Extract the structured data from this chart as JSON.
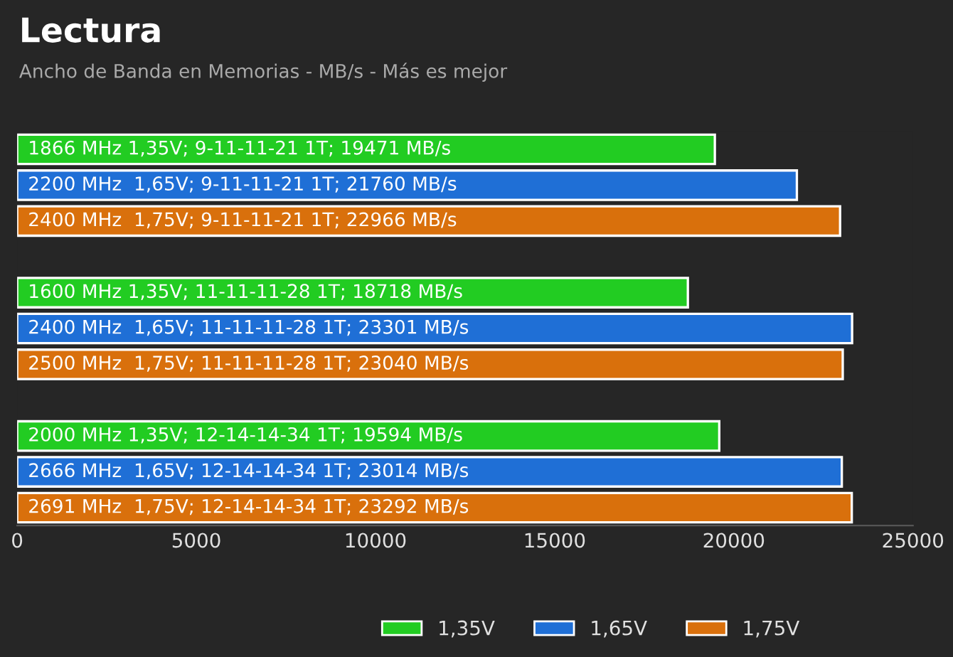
{
  "chart_data": {
    "type": "bar",
    "orientation": "horizontal",
    "title": "Lectura",
    "subtitle": "Ancho de Banda en Memorias - MB/s - Más es mejor",
    "categories": [
      "1866 MHz 1,35V; 9-11-11-21 1T; 19471 MB/s",
      "2200 MHz  1,65V; 9-11-11-21 1T; 21760 MB/s",
      "2400 MHz  1,75V; 9-11-11-21 1T; 22966 MB/s",
      null,
      "1600 MHz 1,35V; 11-11-11-28 1T; 18718 MB/s",
      "2400 MHz  1,65V; 11-11-11-28 1T; 23301 MB/s",
      "2500 MHz  1,75V; 11-11-11-28 1T; 23040 MB/s",
      null,
      "2000 MHz 1,35V; 12-14-14-34 1T; 19594 MB/s",
      "2666 MHz  1,65V; 12-14-14-34 1T; 23014 MB/s",
      "2691 MHz  1,75V; 12-14-14-34 1T; 23292 MB/s"
    ],
    "series": [
      {
        "name": "1,35V",
        "color": "#22cc22",
        "values": [
          19471,
          null,
          null,
          null,
          18718,
          null,
          null,
          null,
          19594,
          null,
          null
        ]
      },
      {
        "name": "1,65V",
        "color": "#1f6fd6",
        "values": [
          null,
          21760,
          null,
          null,
          null,
          23301,
          null,
          null,
          null,
          23014,
          null
        ]
      },
      {
        "name": "1,75V",
        "color": "#d9700c",
        "values": [
          null,
          null,
          22966,
          null,
          null,
          null,
          23040,
          null,
          null,
          null,
          23292
        ]
      }
    ],
    "xlim": [
      0,
      25000
    ],
    "xticks": [
      0,
      5000,
      10000,
      15000,
      20000,
      25000
    ],
    "tick_labels": "x",
    "grid": false,
    "legend": "bottom"
  }
}
